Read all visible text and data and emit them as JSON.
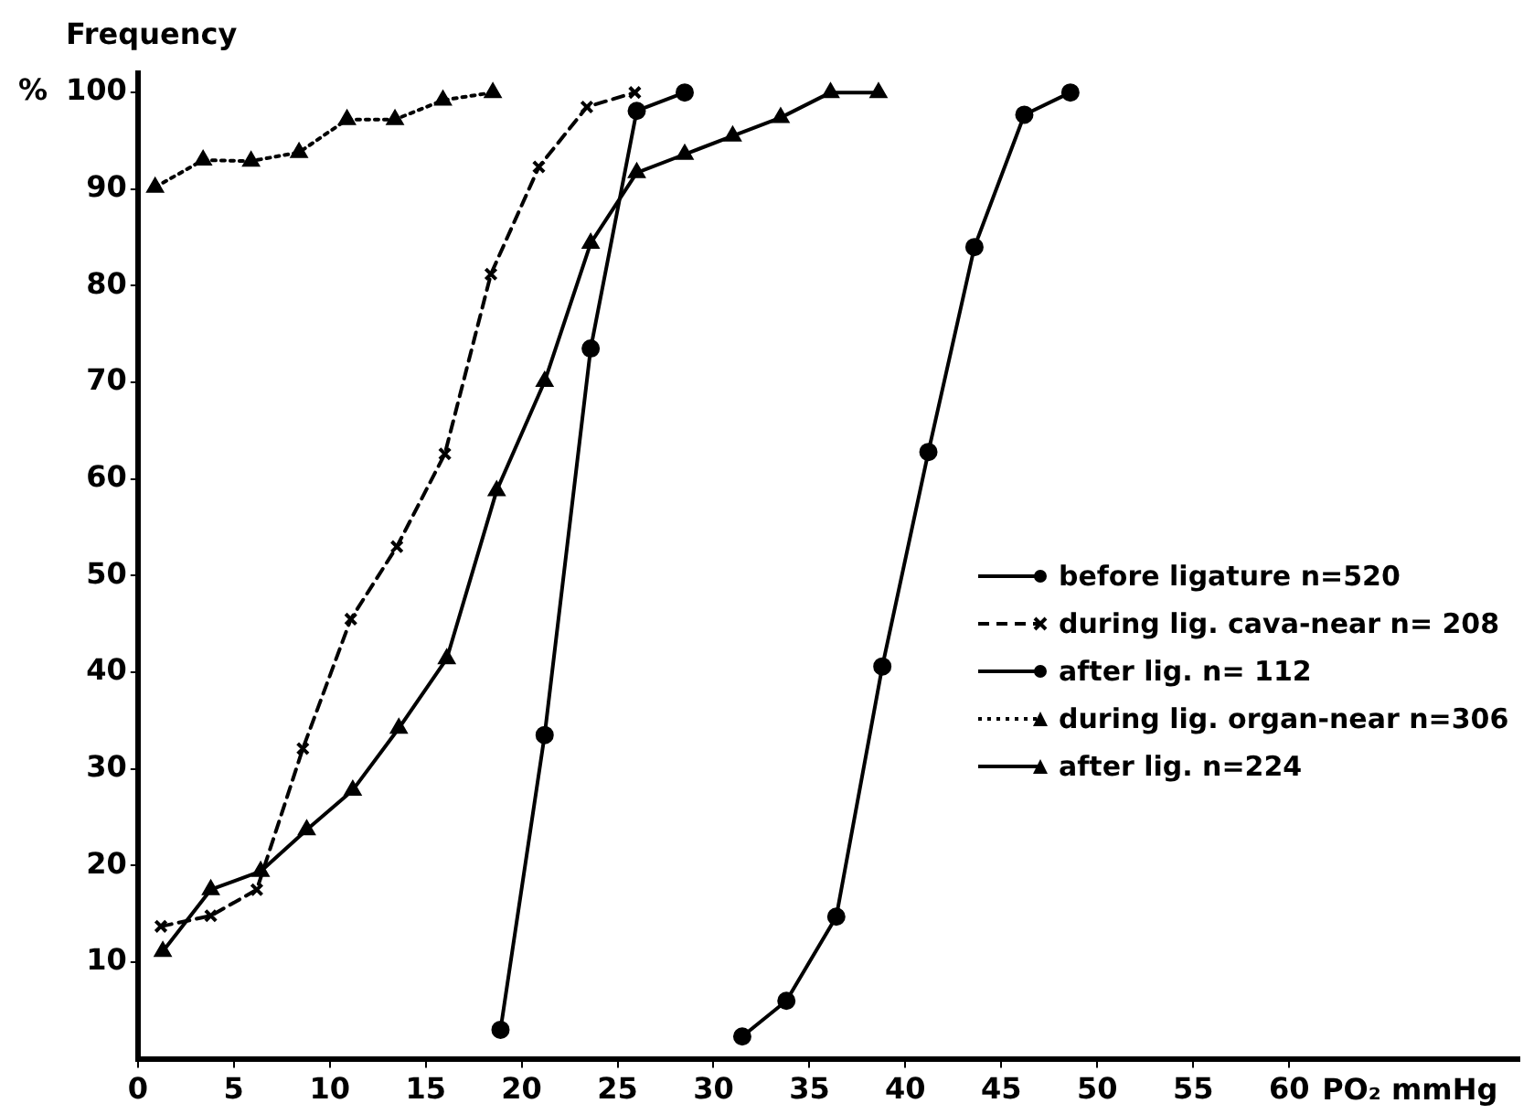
{
  "chart_data": {
    "type": "line",
    "ylabel": "Frequency",
    "xlabel": "PO₂ mmHg",
    "annotations": [
      "%"
    ],
    "xlim": [
      0,
      72
    ],
    "xticks": [
      0,
      5,
      10,
      15,
      20,
      25,
      30,
      35,
      40,
      45,
      50,
      55,
      60
    ],
    "ylim": [
      0,
      102
    ],
    "yticks": [
      10,
      20,
      30,
      40,
      50,
      60,
      70,
      80,
      90,
      100
    ],
    "grid": false,
    "legend": "right",
    "series": [
      {
        "name": "before ligature n=520",
        "color": "#000000",
        "marker": "circle",
        "line_style": "solid",
        "x": [
          31.5,
          33.8,
          36.4,
          38.8,
          41.2,
          43.6,
          46.2,
          48.6
        ],
        "values": [
          2.3,
          6,
          14.7,
          40.6,
          62.8,
          84,
          97.7,
          100
        ]
      },
      {
        "name": "during lig. cava-near n= 208",
        "color": "#000000",
        "marker": "cross",
        "line_style": "dashed",
        "x": [
          1.2,
          3.8,
          6.2,
          8.6,
          11.1,
          13.5,
          16,
          18.4,
          20.9,
          23.4,
          25.9
        ],
        "values": [
          13.7,
          14.8,
          17.5,
          32.1,
          45.5,
          53,
          62.6,
          81.2,
          92.3,
          98.5,
          100
        ]
      },
      {
        "name": "after lig. n= 112",
        "color": "#000000",
        "marker": "circle",
        "line_style": "solid",
        "x": [
          18.9,
          21.2,
          23.6,
          26,
          28.5
        ],
        "values": [
          3,
          33.5,
          73.5,
          98.1,
          100
        ]
      },
      {
        "name": "during lig. organ-near n=306",
        "color": "#000000",
        "marker": "triangle",
        "line_style": "dotted",
        "x": [
          0.9,
          3.4,
          5.9,
          8.4,
          10.9,
          13.4,
          15.9,
          18.5
        ],
        "values": [
          90.2,
          93,
          92.9,
          93.8,
          97.2,
          97.2,
          99.2,
          100
        ]
      },
      {
        "name": "after lig. n=224",
        "color": "#000000",
        "marker": "triangle",
        "line_style": "solid",
        "x": [
          1.3,
          3.8,
          6.4,
          8.8,
          11.2,
          13.6,
          16.1,
          18.7,
          21.2,
          23.6,
          26,
          28.5,
          31,
          33.5,
          36.1,
          38.6
        ],
        "values": [
          11.1,
          17.5,
          19.4,
          23.7,
          27.8,
          34.2,
          41.4,
          58.8,
          70.1,
          84.4,
          91.7,
          93.6,
          95.5,
          97.4,
          100,
          100
        ]
      }
    ]
  }
}
